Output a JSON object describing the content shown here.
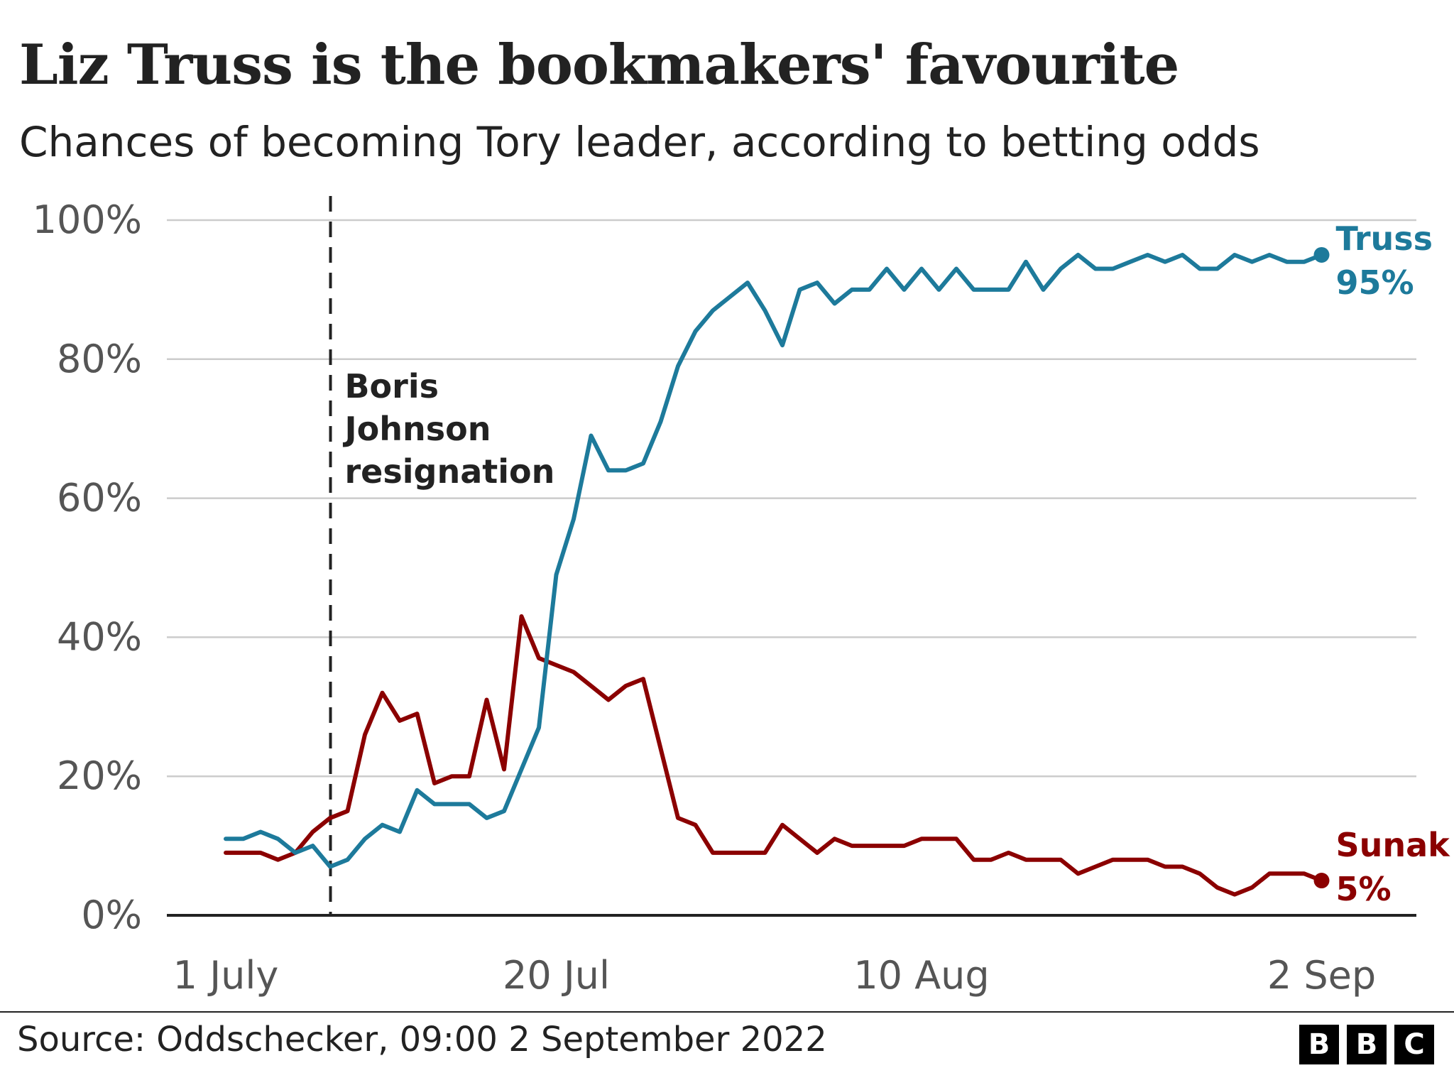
{
  "header": {
    "title": "Liz Truss is the bookmakers' favourite",
    "subtitle": "Chances of becoming Tory leader, according to betting odds"
  },
  "footer": {
    "source": "Source: Oddschecker, 09:00 2 September 2022",
    "logo": [
      "B",
      "B",
      "C"
    ]
  },
  "chart_data": {
    "type": "line",
    "x_start": "2022-07-01",
    "x_end": "2022-09-02",
    "x_ticks": [
      "1 July",
      "20 Jul",
      "10 Aug",
      "2 Sep"
    ],
    "y_ticks": [
      "0%",
      "20%",
      "40%",
      "60%",
      "80%",
      "100%"
    ],
    "ylim": [
      0,
      100
    ],
    "grid": true,
    "annotation": {
      "x": "2022-07-07",
      "lines": [
        "Boris",
        "Johnson",
        "resignation"
      ]
    },
    "series": [
      {
        "name": "Truss",
        "end_label": "95%",
        "color": "#1d7a9b",
        "values": [
          11,
          11,
          12,
          11,
          9,
          10,
          7,
          8,
          11,
          13,
          12,
          18,
          16,
          16,
          16,
          14,
          15,
          21,
          27,
          49,
          57,
          69,
          64,
          64,
          65,
          71,
          79,
          84,
          87,
          89,
          91,
          87,
          82,
          90,
          91,
          88,
          90,
          90,
          93,
          90,
          93,
          90,
          93,
          90,
          90,
          90,
          94,
          90,
          93,
          95,
          93,
          93,
          94,
          95,
          94,
          95,
          93,
          93,
          95,
          94,
          95,
          94,
          94,
          95
        ]
      },
      {
        "name": "Sunak",
        "end_label": "5%",
        "color": "#8b0000",
        "values": [
          9,
          9,
          9,
          8,
          9,
          12,
          14,
          15,
          26,
          32,
          28,
          29,
          19,
          20,
          20,
          31,
          21,
          43,
          37,
          36,
          35,
          33,
          31,
          33,
          34,
          24,
          14,
          13,
          9,
          9,
          9,
          9,
          13,
          11,
          9,
          11,
          10,
          10,
          10,
          10,
          11,
          11,
          11,
          8,
          8,
          9,
          8,
          8,
          8,
          6,
          7,
          8,
          8,
          8,
          7,
          7,
          6,
          4,
          3,
          4,
          6,
          6,
          6,
          5
        ]
      }
    ]
  }
}
